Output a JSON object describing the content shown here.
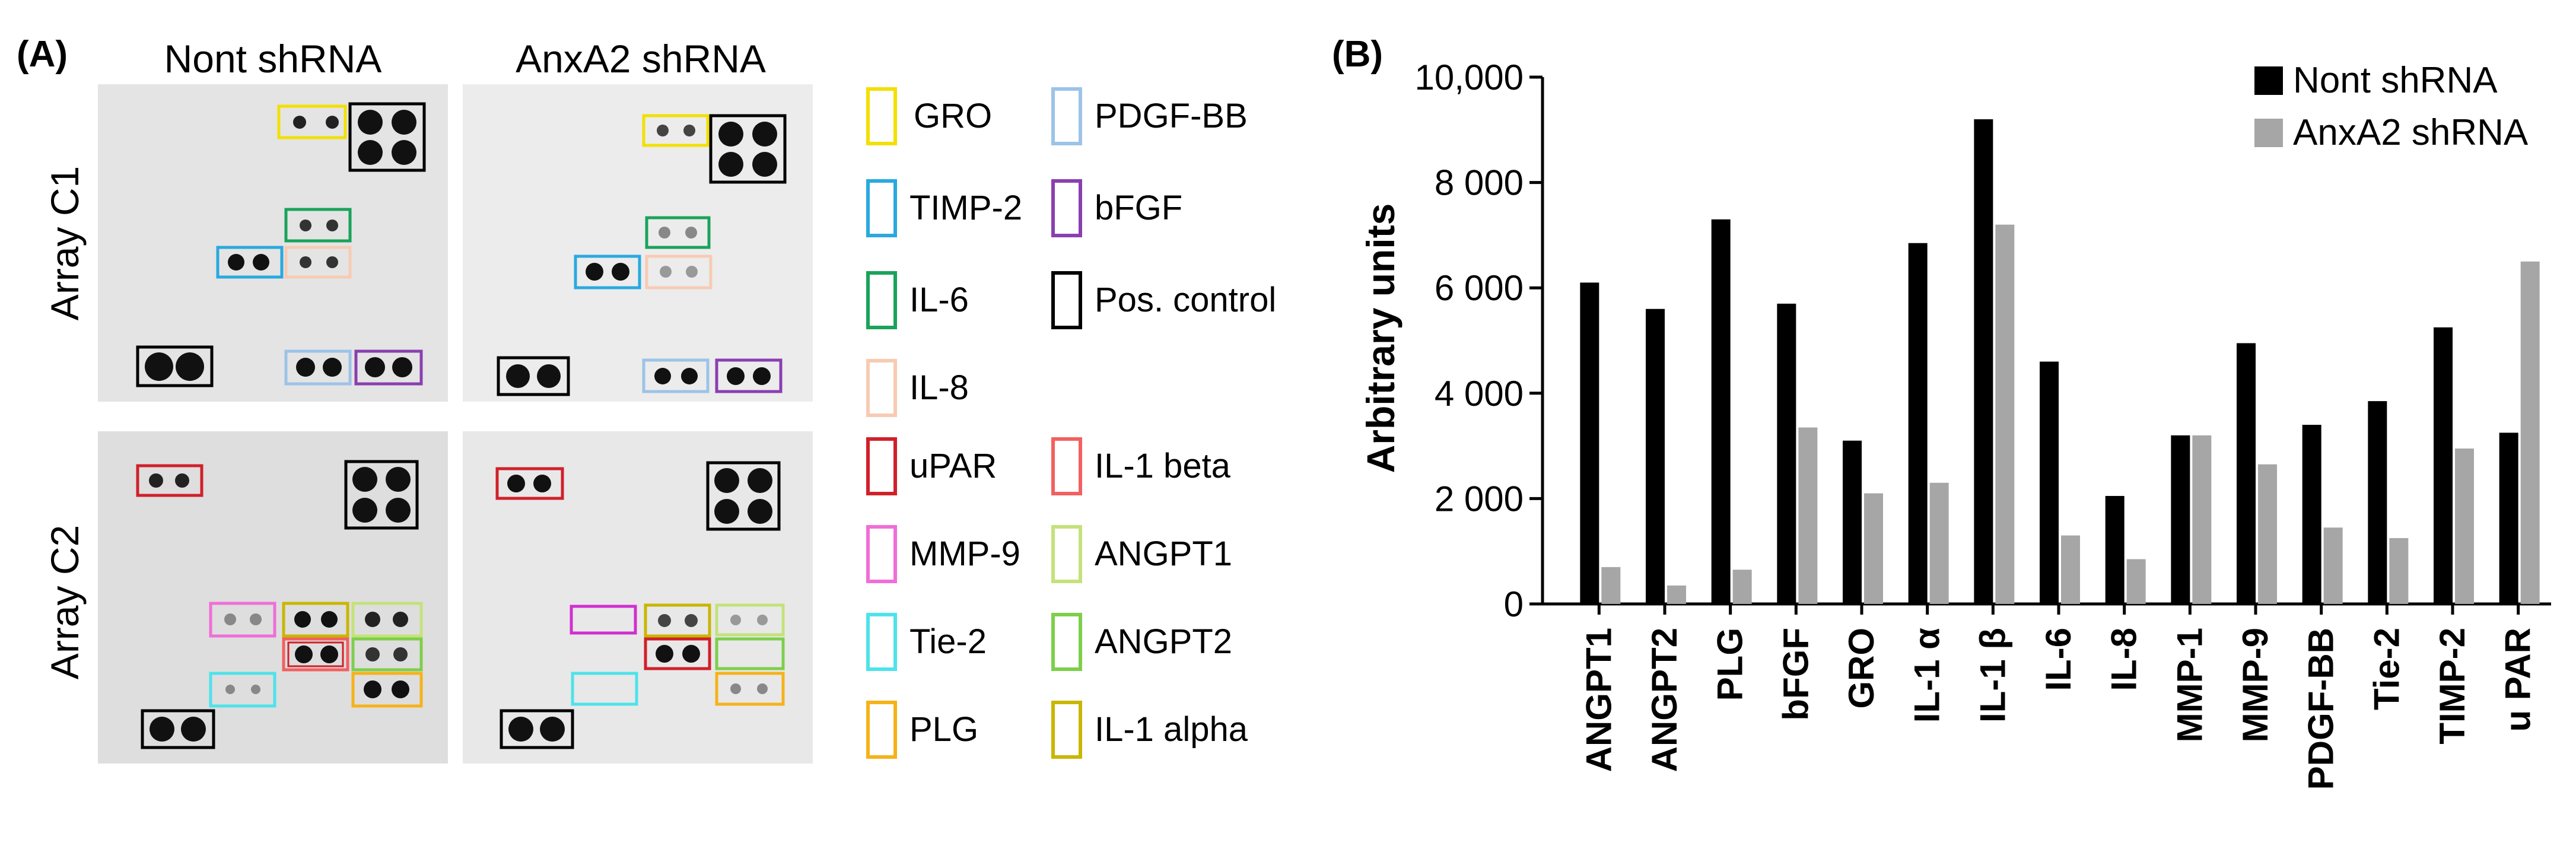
{
  "panel_a": {
    "label": "(A)",
    "col_headers": [
      "Nont shRNA",
      "AnxA2 shRNA"
    ],
    "row_labels": [
      "Array C1",
      "Array C2"
    ]
  },
  "legend_a": [
    {
      "label": "GRO",
      "color": "#f2e000"
    },
    {
      "label": "PDGF-BB",
      "color": "#9cc3e8"
    },
    {
      "label": "TIMP-2",
      "color": "#29a9df"
    },
    {
      "label": "bFGF",
      "color": "#8a3fb0"
    },
    {
      "label": "IL-6",
      "color": "#1aa35a"
    },
    {
      "label": "Pos. control",
      "color": "#000000"
    },
    {
      "label": "IL-8",
      "color": "#f7cbb3"
    },
    {
      "label": "uPAR",
      "color": "#d0202a"
    },
    {
      "label": "IL-1 beta",
      "color": "#f26060"
    },
    {
      "label": "MMP-9",
      "color": "#f06ed8"
    },
    {
      "label": "ANGPT1",
      "color": "#c4e27a"
    },
    {
      "label": "Tie-2",
      "color": "#4de3ea"
    },
    {
      "label": "ANGPT2",
      "color": "#7dcf4a"
    },
    {
      "label": "PLG",
      "color": "#f5b21a"
    },
    {
      "label": "IL-1 alpha",
      "color": "#c9b600"
    }
  ],
  "panel_b": {
    "label": "(B)"
  },
  "chart_data": {
    "type": "bar",
    "title": "",
    "xlabel": "",
    "ylabel": "Arbitrary units",
    "ylim": [
      0,
      10000
    ],
    "yticks": [
      0,
      2000,
      4000,
      6000,
      8000,
      10000
    ],
    "ytick_labels": [
      "0",
      "2 000",
      "4 000",
      "6 000",
      "8 000",
      "10,000"
    ],
    "categories": [
      "ANGPT1",
      "ANGPT2",
      "PLG",
      "bFGF",
      "GRO",
      "IL-1 α",
      "IL-1 β",
      "IL-6",
      "IL-8",
      "MMP-1",
      "MMP-9",
      "PDGF-BB",
      "Tie-2",
      "TIMP-2",
      "u PAR"
    ],
    "series": [
      {
        "name": "Nont shRNA",
        "color": "#000000",
        "values": [
          6100,
          5600,
          7300,
          5700,
          3100,
          6850,
          9200,
          4600,
          2050,
          3200,
          4950,
          3400,
          3850,
          5250,
          3250
        ]
      },
      {
        "name": "AnxA2 shRNA",
        "color": "#a6a6a6",
        "values": [
          700,
          350,
          650,
          3350,
          2100,
          2300,
          7200,
          1300,
          850,
          3200,
          2650,
          1450,
          1250,
          2950,
          6500
        ]
      }
    ],
    "legend_position": "top-right"
  }
}
